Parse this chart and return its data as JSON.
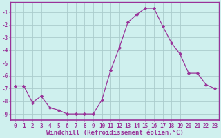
{
  "x": [
    0,
    1,
    2,
    3,
    4,
    5,
    6,
    7,
    8,
    9,
    10,
    11,
    12,
    13,
    14,
    15,
    16,
    17,
    18,
    19,
    20,
    21,
    22,
    23
  ],
  "y": [
    -6.8,
    -6.8,
    -8.1,
    -7.6,
    -8.5,
    -8.7,
    -9.0,
    -9.0,
    -9.0,
    -9.0,
    -7.9,
    -5.6,
    -3.8,
    -1.8,
    -1.2,
    -0.7,
    -0.7,
    -2.1,
    -3.4,
    -4.3,
    -5.8,
    -5.8,
    -6.7,
    -7.0
  ],
  "line_color": "#993399",
  "marker": "D",
  "marker_size": 2.2,
  "background_color": "#cff0ee",
  "grid_color": "#aacccc",
  "xlabel": "Windchill (Refroidissement éolien,°C)",
  "xlabel_color": "#993399",
  "tick_color": "#993399",
  "spine_color": "#993399",
  "ylim": [
    -9.5,
    -0.2
  ],
  "xlim": [
    -0.5,
    23.5
  ],
  "yticks": [
    -9,
    -8,
    -7,
    -6,
    -5,
    -4,
    -3,
    -2,
    -1
  ],
  "xticks": [
    0,
    1,
    2,
    3,
    4,
    5,
    6,
    7,
    8,
    9,
    10,
    11,
    12,
    13,
    14,
    15,
    16,
    17,
    18,
    19,
    20,
    21,
    22,
    23
  ],
  "tick_fontsize": 5.5,
  "xlabel_fontsize": 6.5
}
